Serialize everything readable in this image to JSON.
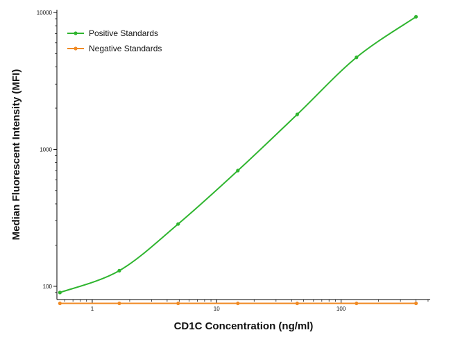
{
  "chart_data": {
    "type": "line",
    "title": "",
    "xlabel": "CD1C Concentration (ng/ml)",
    "ylabel": "Median  Fluorescent Intensity  (MFI)",
    "x_scale": "log",
    "y_scale": "log",
    "xlim": [
      0.52,
      520
    ],
    "ylim": [
      80,
      10000
    ],
    "x_ticks": [
      {
        "value": 1,
        "label": "1"
      },
      {
        "value": 10,
        "label": "10"
      },
      {
        "value": 100,
        "label": "100"
      }
    ],
    "y_ticks": [
      {
        "value": 100,
        "label": "100"
      },
      {
        "value": 1000,
        "label": "1000"
      },
      {
        "value": 10000,
        "label": "10000"
      }
    ],
    "grid": false,
    "legend": "top-left",
    "series": [
      {
        "name": "Positive Standards",
        "color": "#2fb52f",
        "x": [
          0.55,
          1.65,
          4.9,
          14.8,
          44.4,
          133,
          400
        ],
        "y": [
          90,
          130,
          285,
          700,
          1800,
          4700,
          9300
        ]
      },
      {
        "name": "Negative Standards",
        "color": "#f08a24",
        "x": [
          0.55,
          1.65,
          4.9,
          14.8,
          44.4,
          133,
          400
        ],
        "y": [
          75,
          75,
          75,
          75,
          75,
          75,
          75
        ]
      }
    ]
  }
}
